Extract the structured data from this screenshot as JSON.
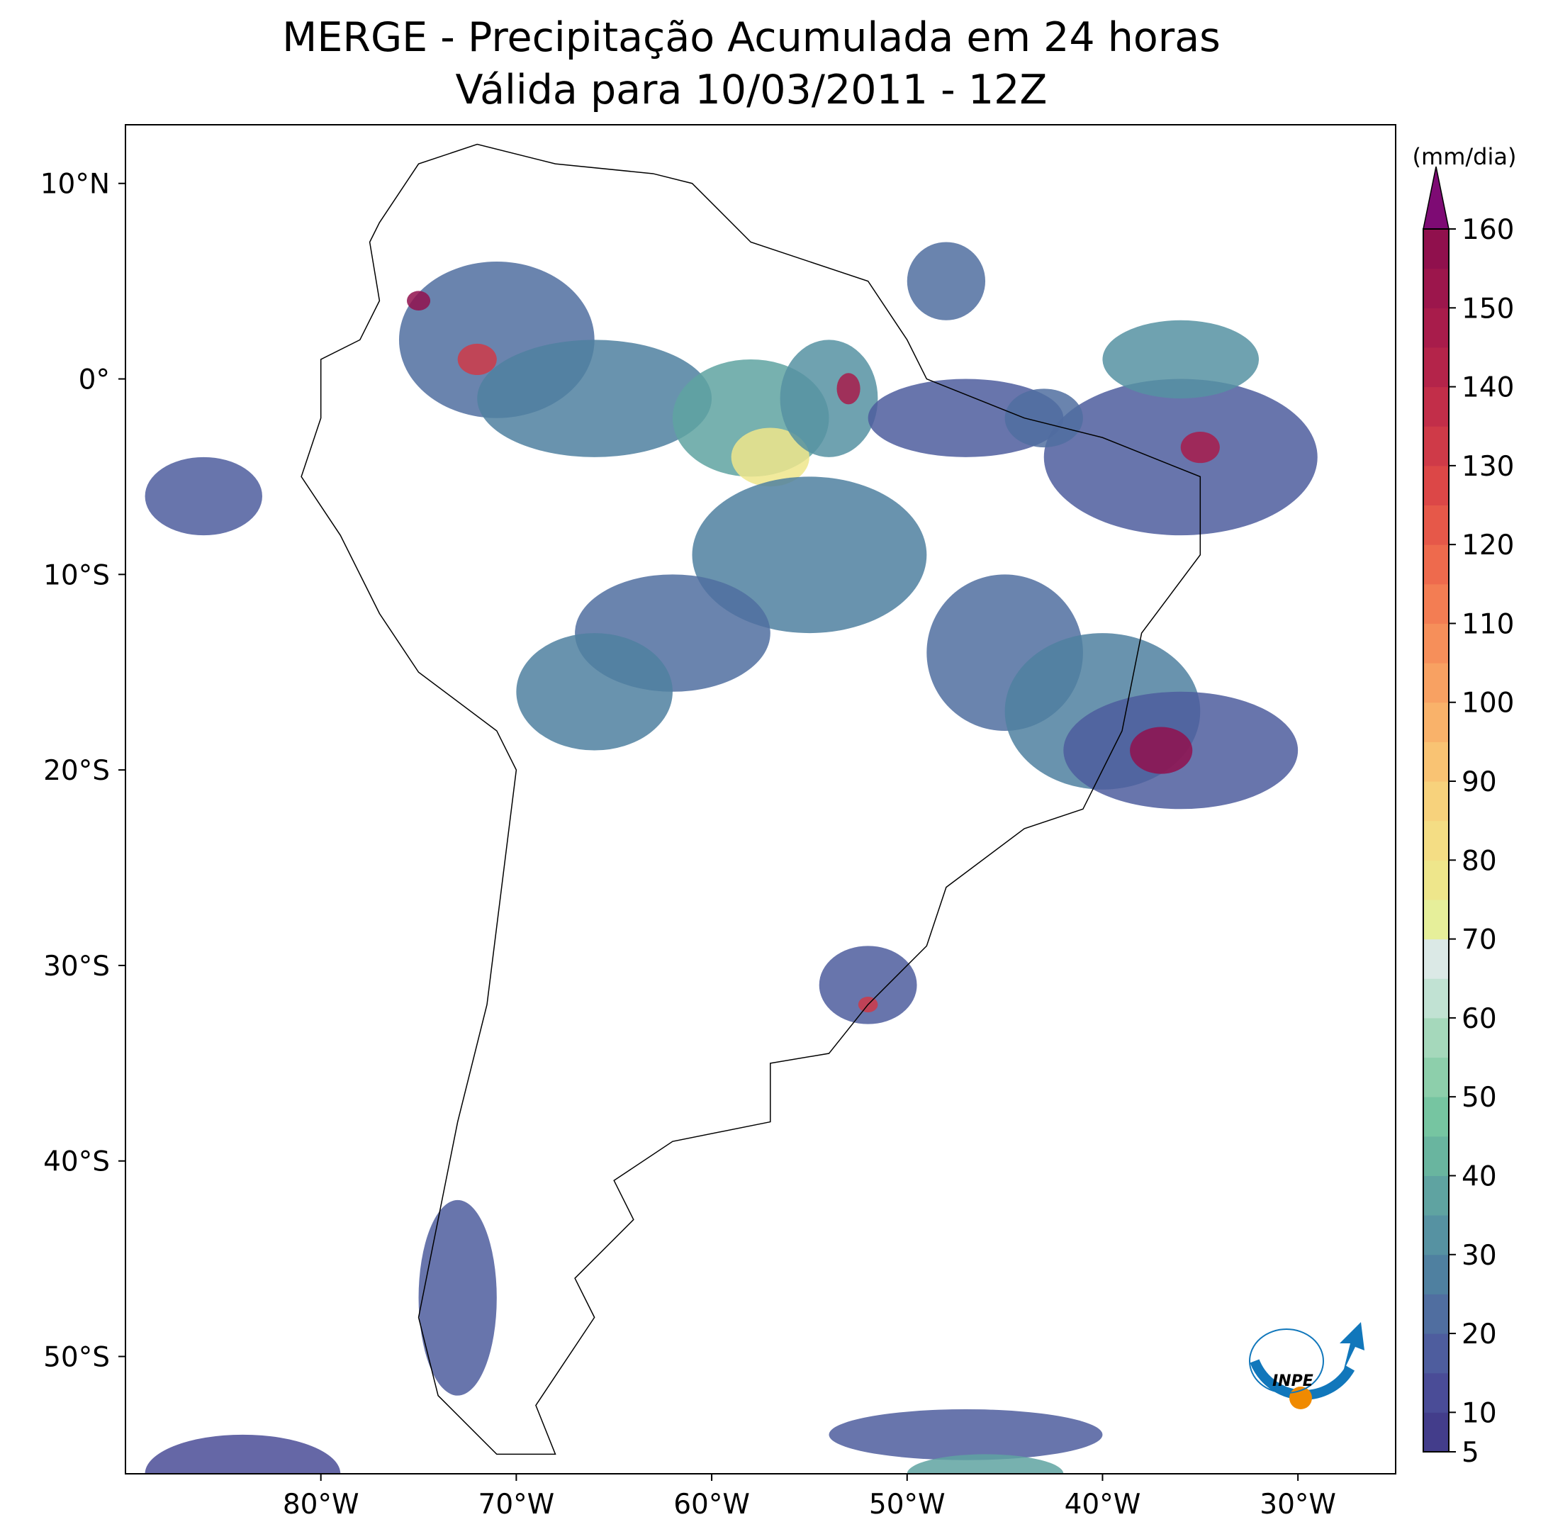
{
  "map": {
    "title": "MERGE - Precipitação Acumulada em 24 horas",
    "subtitle": "Válida para 10/03/2011 - 12Z",
    "xlim": [
      -90,
      -25
    ],
    "ylim": [
      -56,
      13
    ],
    "xticks": [
      {
        "value": -80,
        "label": "80°W"
      },
      {
        "value": -70,
        "label": "70°W"
      },
      {
        "value": -60,
        "label": "60°W"
      },
      {
        "value": -50,
        "label": "50°W"
      },
      {
        "value": -40,
        "label": "40°W"
      },
      {
        "value": -30,
        "label": "30°W"
      }
    ],
    "yticks": [
      {
        "value": 10,
        "label": "10°N"
      },
      {
        "value": 0,
        "label": "0°"
      },
      {
        "value": -10,
        "label": "10°S"
      },
      {
        "value": -20,
        "label": "20°S"
      },
      {
        "value": -30,
        "label": "30°S"
      },
      {
        "value": -40,
        "label": "40°S"
      },
      {
        "value": -50,
        "label": "50°S"
      }
    ],
    "colorbar": {
      "label": "(mm/dia)",
      "lim": [
        5,
        160
      ],
      "ticks": [
        5,
        10,
        20,
        30,
        40,
        50,
        60,
        70,
        80,
        90,
        100,
        110,
        120,
        130,
        140,
        150,
        160
      ],
      "colors": [
        "#433d8b",
        "#4a4c97",
        "#4e5d9e",
        "#506ea0",
        "#4f80a0",
        "#5692a2",
        "#5fa3a1",
        "#69b59f",
        "#76c5a1",
        "#8dcfab",
        "#a5d8bb",
        "#c1e2d3",
        "#dbe9e6",
        "#e6ef9a",
        "#eee68b",
        "#f4dd84",
        "#f7d27c",
        "#f9c373",
        "#f9b26a",
        "#f8a162",
        "#f68f5a",
        "#f37d53",
        "#ee6a4d",
        "#e65849",
        "#dc4747",
        "#cf3a48",
        "#c22e49",
        "#b4244a",
        "#a81c4b",
        "#9c164c",
        "#90104d"
      ],
      "extend_color": "#7e0b74"
    },
    "logo": "INPE"
  }
}
